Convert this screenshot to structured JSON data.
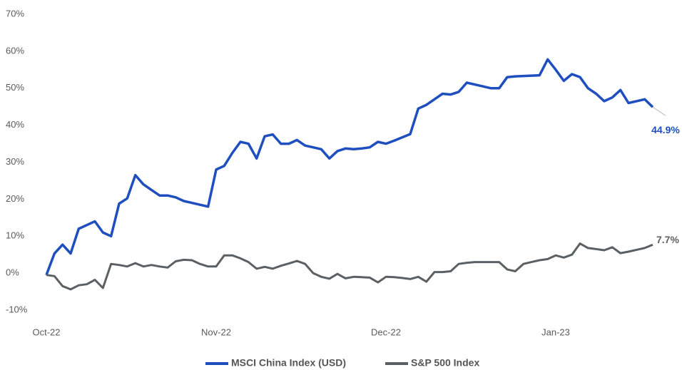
{
  "chart_data": {
    "type": "line",
    "categories": [
      "Oct-22",
      null,
      null,
      null,
      null,
      null,
      null,
      null,
      null,
      null,
      null,
      null,
      null,
      null,
      null,
      null,
      null,
      null,
      null,
      null,
      null,
      "Nov-22",
      null,
      null,
      null,
      null,
      null,
      null,
      null,
      null,
      null,
      null,
      null,
      null,
      null,
      null,
      null,
      null,
      null,
      null,
      null,
      null,
      "Dec-22",
      null,
      null,
      null,
      null,
      null,
      null,
      null,
      null,
      null,
      null,
      null,
      null,
      null,
      null,
      null,
      null,
      null,
      null,
      null,
      null,
      "Jan-23",
      null,
      null,
      null,
      null,
      null,
      null,
      null,
      null,
      null,
      null,
      null,
      null
    ],
    "series": [
      {
        "name": "MSCI China Index (USD)",
        "color": "#1f4fbf",
        "values": [
          -0.5,
          5.3,
          7.7,
          5.3,
          12,
          13,
          14,
          11,
          10,
          18.8,
          20.2,
          26.5,
          24,
          22.5,
          21,
          21,
          20.5,
          19.5,
          19,
          18.5,
          18,
          28,
          29,
          32.5,
          35.5,
          35,
          31,
          37,
          37.5,
          35,
          35,
          36,
          34.5,
          34,
          33.5,
          31,
          33,
          33.7,
          33.5,
          33.7,
          34,
          35.5,
          35,
          35.8,
          36.7,
          37.6,
          44.5,
          45.5,
          47,
          48.5,
          48.3,
          49,
          51.5,
          51,
          50.5,
          50,
          50,
          53,
          53.2,
          53.3,
          53.4,
          53.5,
          57.8,
          55,
          52,
          53.8,
          53,
          50,
          48.5,
          46.5,
          47.5,
          49.5,
          46,
          46.5,
          47,
          44.9
        ],
        "value_labels": [
          null,
          null,
          null,
          null,
          null,
          null,
          null,
          null,
          null,
          null,
          null,
          null,
          null,
          null,
          null,
          null,
          null,
          null,
          null,
          null,
          null,
          null,
          null,
          null,
          null,
          null,
          null,
          null,
          null,
          null,
          null,
          null,
          null,
          null,
          null,
          null,
          null,
          null,
          null,
          null,
          null,
          null,
          null,
          null,
          null,
          null,
          null,
          null,
          null,
          null,
          null,
          null,
          null,
          null,
          null,
          null,
          null,
          null,
          null,
          null,
          null,
          null,
          null,
          null,
          null,
          null,
          null,
          null,
          null,
          null,
          null,
          null,
          null,
          null,
          null,
          "44.9%"
        ]
      },
      {
        "name": "S&P 500 Index",
        "color": "#5b6065",
        "values": [
          -0.5,
          -0.8,
          -3.5,
          -4.4,
          -3.3,
          -3,
          -1.8,
          -4,
          2.5,
          2.2,
          1.8,
          2.7,
          1.8,
          2.2,
          1.8,
          1.5,
          3.2,
          3.6,
          3.5,
          2.5,
          1.8,
          1.8,
          4.8,
          4.8,
          4,
          3,
          1.2,
          1.7,
          1.2,
          2,
          2.6,
          3.3,
          2.5,
          0,
          -1,
          -1.5,
          -0.2,
          -1.4,
          -1,
          -1.1,
          -1.2,
          -2.5,
          -1,
          -1.1,
          -1.3,
          -1.6,
          -1,
          -2.3,
          0.3,
          0.3,
          0.5,
          2.5,
          2.8,
          3,
          3,
          3,
          3,
          1,
          0.5,
          2.5,
          3,
          3.5,
          3.8,
          4.8,
          4.2,
          5,
          8,
          6.8,
          6.5,
          6.2,
          7,
          5.4,
          5.8,
          6.3,
          6.8,
          7.7
        ],
        "value_labels": [
          null,
          null,
          null,
          null,
          null,
          null,
          null,
          null,
          null,
          null,
          null,
          null,
          null,
          null,
          null,
          null,
          null,
          null,
          null,
          null,
          null,
          null,
          null,
          null,
          null,
          null,
          null,
          null,
          null,
          null,
          null,
          null,
          null,
          null,
          null,
          null,
          null,
          null,
          null,
          null,
          null,
          null,
          null,
          null,
          null,
          null,
          null,
          null,
          null,
          null,
          null,
          null,
          null,
          null,
          null,
          null,
          null,
          null,
          null,
          null,
          null,
          null,
          null,
          null,
          null,
          null,
          null,
          null,
          null,
          null,
          null,
          null,
          null,
          null,
          null,
          "7.7%"
        ]
      }
    ],
    "ylim": [
      -10,
      70
    ],
    "yticks": [
      {
        "value": -10,
        "label": "-10%"
      },
      {
        "value": 0,
        "label": "0%"
      },
      {
        "value": 10,
        "label": "10%"
      },
      {
        "value": 20,
        "label": "20%"
      },
      {
        "value": 30,
        "label": "30%"
      },
      {
        "value": 40,
        "label": "40%"
      },
      {
        "value": 50,
        "label": "50%"
      },
      {
        "value": 60,
        "label": "60%"
      },
      {
        "value": 70,
        "label": "70%"
      }
    ],
    "grid": false,
    "legend": "bottom"
  }
}
